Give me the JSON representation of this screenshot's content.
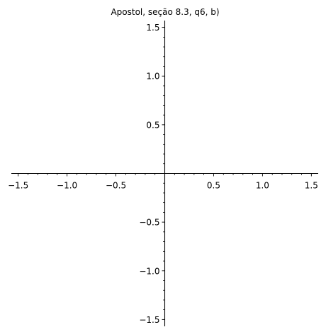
{
  "chart_data": {
    "type": "line",
    "title": "Apostol, seção 8.3, q6, b)",
    "xlabel": "",
    "ylabel": "",
    "xlim": [
      -1.57,
      1.57
    ],
    "ylim": [
      -1.57,
      1.57
    ],
    "grid": false,
    "series": [],
    "x_ticks": [
      {
        "value": -1.5,
        "label": "−1.5"
      },
      {
        "value": -1.0,
        "label": "−1.0"
      },
      {
        "value": -0.5,
        "label": "−0.5"
      },
      {
        "value": 0.5,
        "label": "0.5"
      },
      {
        "value": 1.0,
        "label": "1.0"
      },
      {
        "value": 1.5,
        "label": "1.5"
      }
    ],
    "y_ticks": [
      {
        "value": 1.5,
        "label": "1.5"
      },
      {
        "value": 1.0,
        "label": "1.0"
      },
      {
        "value": 0.5,
        "label": "0.5"
      },
      {
        "value": -0.5,
        "label": "−0.5"
      },
      {
        "value": -1.0,
        "label": "−1.0"
      },
      {
        "value": -1.5,
        "label": "−1.5"
      }
    ],
    "minor_tick_step": 0.1
  }
}
